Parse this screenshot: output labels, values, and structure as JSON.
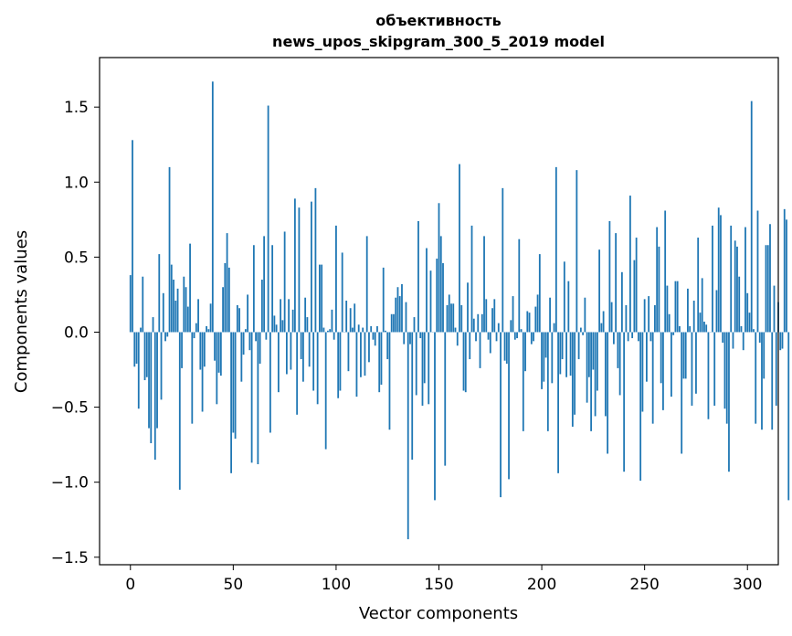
{
  "chart_data": {
    "type": "bar",
    "title_line1": "объективность",
    "title_line2": "news_upos_skipgram_300_5_2019 model",
    "xlabel": "Vector components",
    "ylabel": "Components values",
    "xlim": [
      -15,
      315
    ],
    "ylim": [
      -1.55,
      1.83
    ],
    "xticks": [
      0,
      50,
      100,
      150,
      200,
      250,
      300
    ],
    "xtick_labels": [
      "0",
      "50",
      "100",
      "150",
      "200",
      "250",
      "300"
    ],
    "yticks": [
      -1.5,
      -1.0,
      -0.5,
      0.0,
      0.5,
      1.0,
      1.5
    ],
    "ytick_labels": [
      "−1.5",
      "−1.0",
      "−0.5",
      "0.0",
      "0.5",
      "1.0",
      "1.5"
    ],
    "bar_color": "#1f77b4",
    "grid": false,
    "values": [
      0.38,
      1.28,
      -0.23,
      -0.21,
      -0.51,
      0.03,
      0.37,
      -0.32,
      -0.3,
      -0.64,
      -0.74,
      0.1,
      -0.85,
      -0.64,
      0.52,
      -0.45,
      0.26,
      -0.06,
      -0.03,
      1.1,
      0.45,
      0.35,
      0.21,
      0.29,
      -1.05,
      -0.24,
      0.37,
      0.3,
      0.17,
      0.59,
      -0.61,
      -0.04,
      0.06,
      0.22,
      -0.25,
      -0.53,
      -0.23,
      0.04,
      0.02,
      0.19,
      1.67,
      -0.19,
      -0.48,
      -0.27,
      -0.29,
      0.3,
      0.46,
      0.66,
      0.43,
      -0.94,
      -0.67,
      -0.71,
      0.18,
      0.16,
      -0.33,
      -0.15,
      0.02,
      0.25,
      -0.12,
      -0.87,
      0.58,
      -0.06,
      -0.88,
      -0.21,
      0.35,
      0.64,
      -0.05,
      1.51,
      -0.67,
      0.58,
      0.11,
      0.05,
      -0.4,
      0.22,
      0.08,
      0.67,
      -0.28,
      0.22,
      -0.25,
      0.15,
      0.89,
      -0.55,
      0.83,
      -0.18,
      -0.33,
      0.23,
      0.1,
      -0.23,
      0.87,
      -0.39,
      0.96,
      -0.48,
      0.45,
      0.45,
      0.03,
      -0.78,
      0.01,
      0.02,
      0.15,
      -0.05,
      0.71,
      -0.44,
      -0.39,
      0.53,
      0.0,
      0.21,
      -0.26,
      0.16,
      0.03,
      0.19,
      -0.43,
      0.05,
      -0.3,
      0.03,
      -0.29,
      0.64,
      -0.2,
      0.04,
      -0.05,
      -0.09,
      0.04,
      -0.4,
      -0.35,
      0.43,
      0.01,
      -0.18,
      -0.65,
      0.12,
      0.12,
      0.23,
      0.3,
      0.24,
      0.32,
      -0.08,
      0.2,
      -1.38,
      -0.08,
      -0.85,
      0.1,
      -0.42,
      0.74,
      -0.04,
      -0.49,
      -0.34,
      0.56,
      -0.48,
      0.41,
      0.0,
      -1.12,
      0.49,
      0.86,
      0.64,
      0.46,
      -0.89,
      0.18,
      0.25,
      0.19,
      0.19,
      0.03,
      -0.09,
      1.12,
      0.18,
      -0.39,
      -0.4,
      0.33,
      -0.18,
      0.71,
      0.09,
      -0.06,
      0.12,
      -0.24,
      0.12,
      0.64,
      0.22,
      -0.05,
      -0.14,
      0.16,
      0.22,
      -0.06,
      0.06,
      -1.1,
      0.96,
      -0.19,
      -0.21,
      -0.98,
      0.08,
      0.24,
      -0.05,
      -0.04,
      0.62,
      0.02,
      -0.66,
      -0.26,
      0.14,
      0.13,
      -0.08,
      -0.06,
      0.17,
      0.25,
      0.52,
      -0.38,
      -0.33,
      -0.17,
      -0.66,
      0.23,
      -0.34,
      0.06,
      1.1,
      -0.94,
      -0.28,
      -0.18,
      0.47,
      -0.3,
      0.34,
      -0.29,
      -0.63,
      -0.55,
      1.08,
      -0.18,
      0.03,
      -0.02,
      0.23,
      -0.47,
      -0.3,
      -0.66,
      -0.25,
      -0.56,
      -0.39,
      0.55,
      0.06,
      0.14,
      -0.56,
      -0.81,
      0.74,
      0.2,
      -0.08,
      0.66,
      -0.24,
      -0.42,
      0.4,
      -0.93,
      0.18,
      -0.06,
      0.91,
      -0.04,
      0.48,
      0.63,
      -0.06,
      -0.99,
      -0.53,
      0.22,
      -0.33,
      0.24,
      -0.06,
      -0.61,
      0.18,
      0.7,
      0.57,
      -0.34,
      -0.52,
      0.81,
      0.31,
      0.12,
      -0.43,
      -0.02,
      0.34,
      0.34,
      0.04,
      -0.81,
      -0.31,
      -0.31,
      0.29,
      0.04,
      -0.49,
      0.21,
      -0.41,
      0.63,
      0.13,
      0.36,
      0.07,
      0.05,
      -0.58,
      0.0,
      0.71,
      -0.49,
      0.28,
      0.83,
      0.78,
      -0.07,
      -0.51,
      -0.61,
      -0.93,
      0.71,
      -0.11,
      0.61,
      0.57,
      0.37,
      0.04,
      -0.12,
      0.7,
      0.26,
      0.13,
      1.54,
      0.02,
      -0.61,
      0.81,
      -0.07,
      -0.65,
      -0.31,
      0.58,
      0.58,
      0.72,
      -0.65,
      0.31,
      -0.49,
      0.2,
      -0.12,
      -0.11,
      0.82,
      0.75,
      -1.12
    ]
  }
}
